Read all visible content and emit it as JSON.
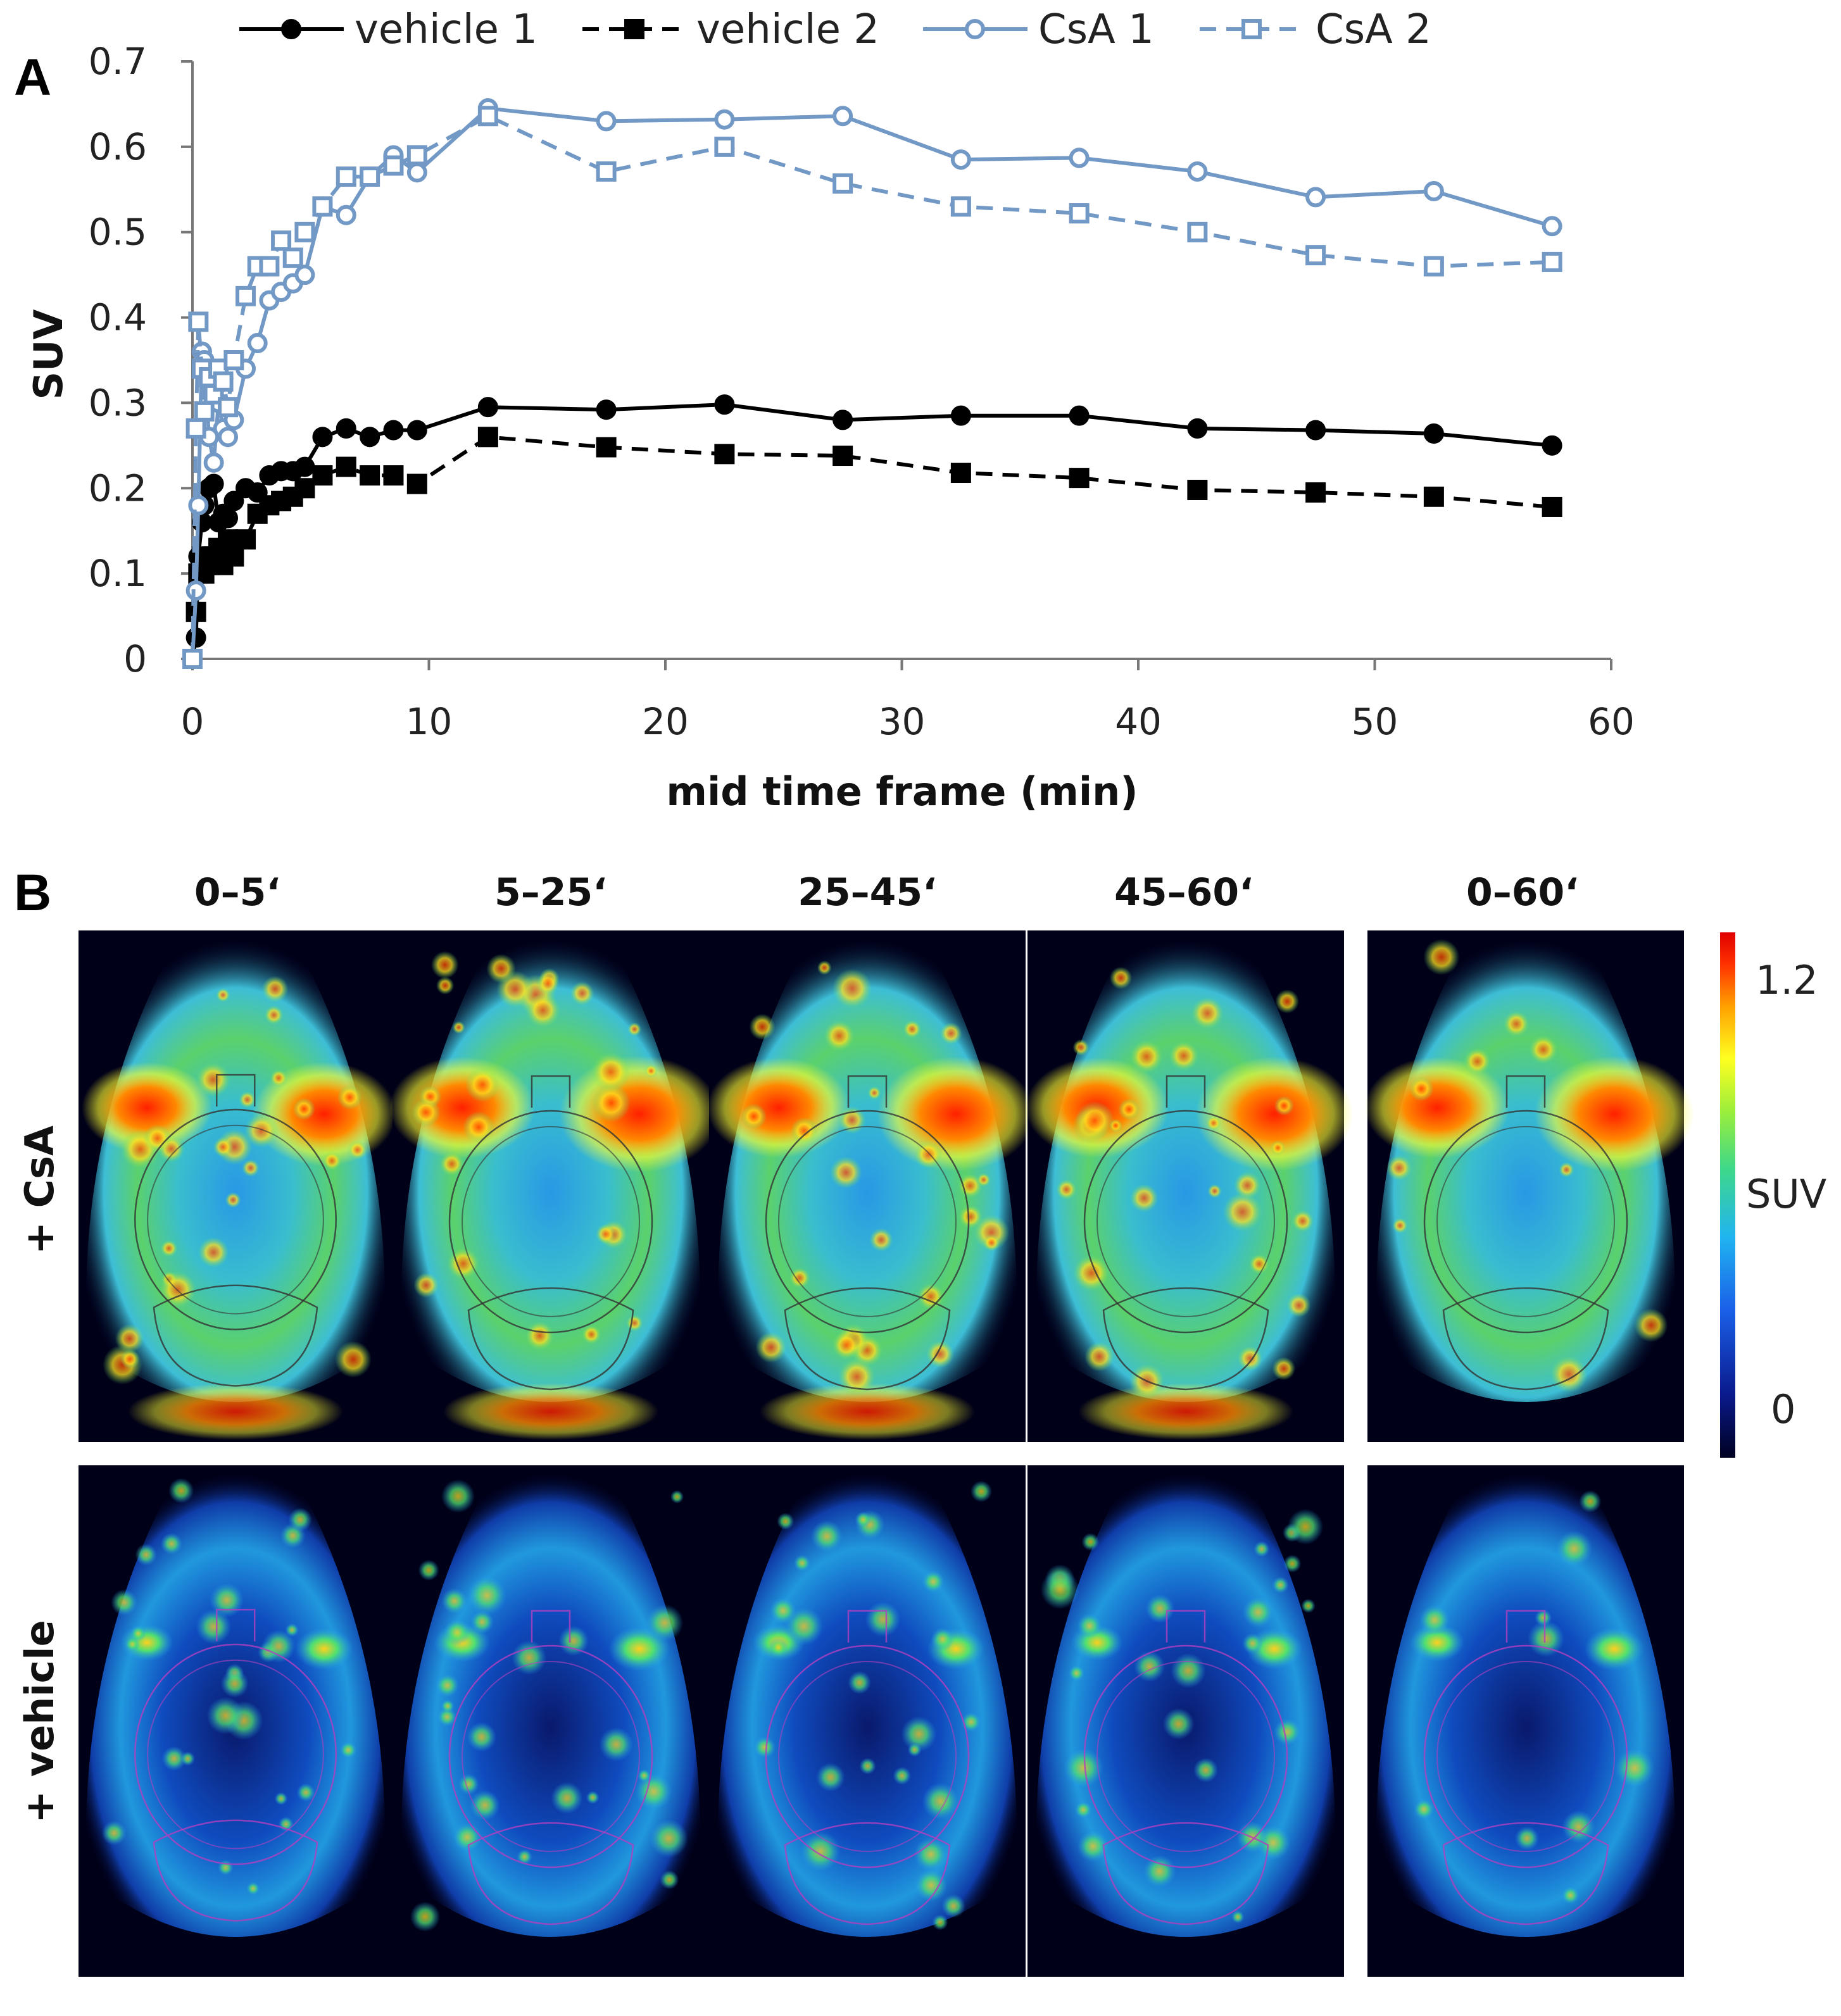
{
  "panels": {
    "a_label": "A",
    "b_label": "B"
  },
  "chart_data": {
    "type": "line",
    "title": "",
    "xlabel": "mid time frame (min)",
    "ylabel": "SUV",
    "xlim": [
      0,
      60
    ],
    "ylim": [
      0,
      0.7
    ],
    "xticks": [
      "0",
      "10",
      "20",
      "30",
      "40",
      "50",
      "60"
    ],
    "yticks": [
      "0",
      "0.1",
      "0.2",
      "0.3",
      "0.4",
      "0.5",
      "0.6",
      "0.7"
    ],
    "series": [
      {
        "name": "vehicle 1",
        "color": "#000000",
        "dashed": false,
        "marker": "circle-filled",
        "x": [
          0.0,
          0.15,
          0.25,
          0.4,
          0.5,
          0.7,
          0.9,
          1.1,
          1.3,
          1.5,
          1.75,
          2.25,
          2.75,
          3.25,
          3.75,
          4.25,
          4.75,
          5.5,
          6.5,
          7.5,
          8.5,
          9.5,
          12.5,
          17.5,
          22.5,
          27.5,
          32.5,
          37.5,
          42.5,
          47.5,
          52.5,
          57.5
        ],
        "y": [
          0.0,
          0.025,
          0.12,
          0.16,
          0.18,
          0.2,
          0.205,
          0.16,
          0.17,
          0.165,
          0.185,
          0.2,
          0.195,
          0.215,
          0.22,
          0.22,
          0.225,
          0.26,
          0.27,
          0.26,
          0.268,
          0.268,
          0.295,
          0.292,
          0.298,
          0.28,
          0.285,
          0.285,
          0.27,
          0.268,
          0.264,
          0.25
        ]
      },
      {
        "name": "vehicle 2",
        "color": "#000000",
        "dashed": true,
        "marker": "square-filled",
        "x": [
          0.0,
          0.15,
          0.25,
          0.4,
          0.5,
          0.7,
          0.9,
          1.1,
          1.3,
          1.5,
          1.75,
          2.25,
          2.75,
          3.25,
          3.75,
          4.25,
          4.75,
          5.5,
          6.5,
          7.5,
          8.5,
          9.5,
          12.5,
          17.5,
          22.5,
          27.5,
          32.5,
          37.5,
          42.5,
          47.5,
          52.5,
          57.5
        ],
        "y": [
          0.0,
          0.055,
          0.1,
          0.12,
          0.1,
          0.11,
          0.12,
          0.13,
          0.11,
          0.14,
          0.12,
          0.14,
          0.17,
          0.18,
          0.185,
          0.19,
          0.2,
          0.215,
          0.225,
          0.215,
          0.215,
          0.205,
          0.26,
          0.248,
          0.24,
          0.238,
          0.218,
          0.212,
          0.198,
          0.195,
          0.19,
          0.178
        ]
      },
      {
        "name": "CsA 1",
        "color": "#7299c6",
        "dashed": false,
        "marker": "circle-open",
        "x": [
          0.0,
          0.15,
          0.25,
          0.4,
          0.5,
          0.7,
          0.9,
          1.1,
          1.3,
          1.5,
          1.75,
          2.25,
          2.75,
          3.25,
          3.75,
          4.25,
          4.75,
          5.5,
          6.5,
          7.5,
          8.5,
          9.5,
          12.5,
          17.5,
          22.5,
          27.5,
          32.5,
          37.5,
          42.5,
          47.5,
          52.5,
          57.5
        ],
        "y": [
          0.0,
          0.08,
          0.18,
          0.36,
          0.35,
          0.26,
          0.23,
          0.3,
          0.27,
          0.26,
          0.28,
          0.34,
          0.37,
          0.42,
          0.43,
          0.44,
          0.45,
          0.53,
          0.52,
          0.565,
          0.59,
          0.57,
          0.645,
          0.63,
          0.632,
          0.636,
          0.585,
          0.587,
          0.571,
          0.541,
          0.548,
          0.507
        ]
      },
      {
        "name": "CsA 2",
        "color": "#7299c6",
        "dashed": true,
        "marker": "square-open",
        "x": [
          0.0,
          0.15,
          0.25,
          0.4,
          0.5,
          0.7,
          0.9,
          1.1,
          1.3,
          1.5,
          1.75,
          2.25,
          2.75,
          3.25,
          3.75,
          4.25,
          4.75,
          5.5,
          6.5,
          7.5,
          8.5,
          9.5,
          12.5,
          17.5,
          22.5,
          27.5,
          32.5,
          37.5,
          42.5,
          47.5,
          52.5,
          57.5
        ],
        "y": [
          0.0,
          0.27,
          0.395,
          0.34,
          0.29,
          0.33,
          0.31,
          0.34,
          0.325,
          0.295,
          0.35,
          0.425,
          0.46,
          0.46,
          0.49,
          0.47,
          0.5,
          0.53,
          0.565,
          0.565,
          0.578,
          0.59,
          0.636,
          0.571,
          0.6,
          0.557,
          0.53,
          0.522,
          0.5,
          0.473,
          0.46,
          0.465
        ]
      }
    ]
  },
  "images": {
    "columns": [
      "0–5‘",
      "5–25‘",
      "25–45‘",
      "45–60‘",
      "0–60‘"
    ],
    "rows": [
      {
        "label": "+ CsA",
        "intensity": [
          0.55,
          0.75,
          0.72,
          0.72,
          0.74
        ]
      },
      {
        "label": "+ vehicle",
        "intensity": [
          0.28,
          0.32,
          0.27,
          0.26,
          0.3
        ]
      }
    ],
    "colorbar": {
      "label": "SUV",
      "max_label": "1.2",
      "min_label": "0",
      "stops": [
        "#000020",
        "#0a1a8c",
        "#1a5fe8",
        "#20b4f0",
        "#3ed88a",
        "#9cee3a",
        "#ffff20",
        "#ffa000",
        "#ff3000",
        "#e00000"
      ]
    }
  }
}
